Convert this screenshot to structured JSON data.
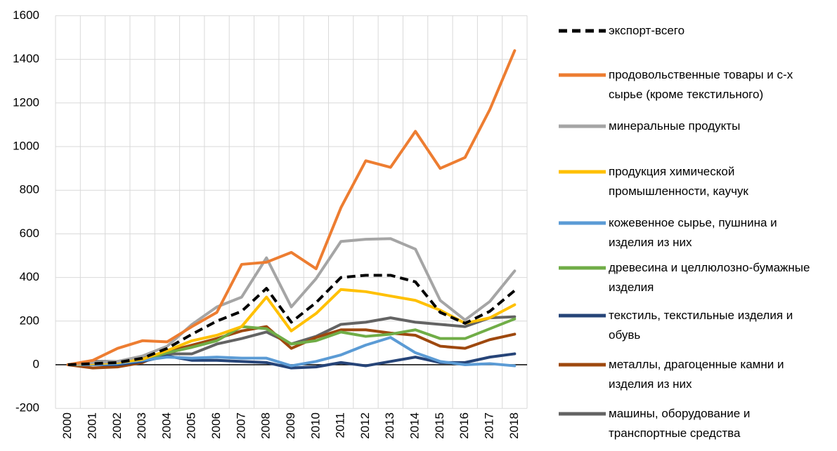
{
  "chart_data": {
    "type": "line",
    "categories": [
      "2000",
      "2001",
      "2002",
      "2003",
      "2004",
      "2005",
      "2006",
      "2007",
      "2008",
      "2009",
      "2010",
      "2011",
      "2012",
      "2013",
      "2014",
      "2015",
      "2016",
      "2017",
      "2018"
    ],
    "ylim": [
      -200,
      1600
    ],
    "yticks": [
      -200,
      0,
      200,
      400,
      600,
      800,
      1000,
      1200,
      1400,
      1600
    ],
    "grid": true,
    "legend": "right",
    "series": [
      {
        "name": "экспорт-всего",
        "color": "#000000",
        "dashed": true,
        "values": [
          0,
          5,
          10,
          30,
          75,
          140,
          200,
          245,
          350,
          195,
          285,
          400,
          410,
          410,
          380,
          240,
          190,
          245,
          340
        ]
      },
      {
        "name": "продовольственные товары и с-х сырье (кроме текстильного)",
        "color": "#ed7d31",
        "values": [
          0,
          20,
          75,
          110,
          105,
          175,
          240,
          460,
          470,
          515,
          440,
          720,
          935,
          905,
          1070,
          900,
          950,
          1170,
          1440
        ]
      },
      {
        "name": "минеральные продукты",
        "color": "#a5a5a5",
        "values": [
          0,
          10,
          15,
          40,
          85,
          185,
          265,
          310,
          490,
          265,
          395,
          565,
          575,
          578,
          530,
          295,
          205,
          290,
          430
        ]
      },
      {
        "name": "продукция химической промышленности, каучук",
        "color": "#ffc000",
        "values": [
          0,
          5,
          10,
          25,
          65,
          110,
          135,
          175,
          310,
          155,
          235,
          345,
          335,
          315,
          295,
          250,
          190,
          215,
          275
        ]
      },
      {
        "name": "кожевенное сырье, пушнина и изделия из них",
        "color": "#5b9bd5",
        "values": [
          0,
          0,
          5,
          20,
          35,
          30,
          35,
          30,
          30,
          -5,
          15,
          45,
          90,
          125,
          55,
          15,
          0,
          5,
          -5
        ]
      },
      {
        "name": "древесина и целлюлозно-бумажные изделия",
        "color": "#70ad47",
        "values": [
          0,
          5,
          10,
          20,
          55,
          80,
          110,
          175,
          165,
          95,
          110,
          150,
          130,
          140,
          160,
          120,
          120,
          165,
          210
        ]
      },
      {
        "name": "текстиль, текстильные изделия  и обувь",
        "color": "#264478",
        "values": [
          0,
          0,
          0,
          15,
          40,
          20,
          20,
          15,
          10,
          -15,
          -10,
          10,
          -5,
          15,
          35,
          10,
          10,
          35,
          50
        ]
      },
      {
        "name": "металлы, драгоценные камни и изделия из них",
        "color": "#9e480e",
        "values": [
          0,
          -15,
          -10,
          10,
          60,
          90,
          120,
          155,
          175,
          75,
          125,
          160,
          160,
          145,
          135,
          85,
          75,
          115,
          140
        ]
      },
      {
        "name": "машины, оборудование и транспортные средства",
        "color": "#636363",
        "values": [
          0,
          15,
          15,
          35,
          50,
          50,
          95,
          120,
          150,
          95,
          130,
          185,
          195,
          215,
          195,
          185,
          175,
          215,
          220
        ]
      }
    ]
  }
}
